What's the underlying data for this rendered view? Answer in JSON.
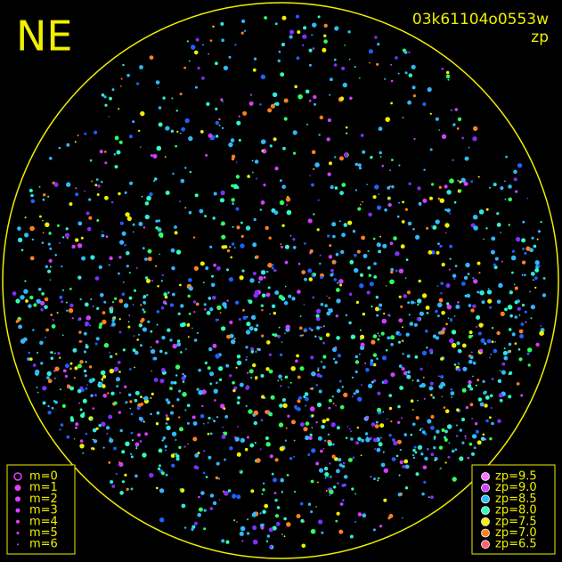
{
  "header": {
    "direction": "NE",
    "image_id": "03k61104o0553w",
    "color_key": "zp"
  },
  "magnitude_legend": {
    "items": [
      "m=0",
      "m=1",
      "m=2",
      "m=3",
      "m=4",
      "m=5",
      "m=6"
    ]
  },
  "zp_legend": {
    "items": [
      {
        "label": "zp=9.5",
        "color": "#ff70ff"
      },
      {
        "label": "zp=9.0",
        "color": "#d040ff"
      },
      {
        "label": "zp=8.5",
        "color": "#30b8ff"
      },
      {
        "label": "zp=8.0",
        "color": "#30ffc0"
      },
      {
        "label": "zp=7.5",
        "color": "#f0f000"
      },
      {
        "label": "zp=7.0",
        "color": "#ff8020"
      },
      {
        "label": "zp=6.5",
        "color": "#ff6070"
      }
    ]
  }
}
